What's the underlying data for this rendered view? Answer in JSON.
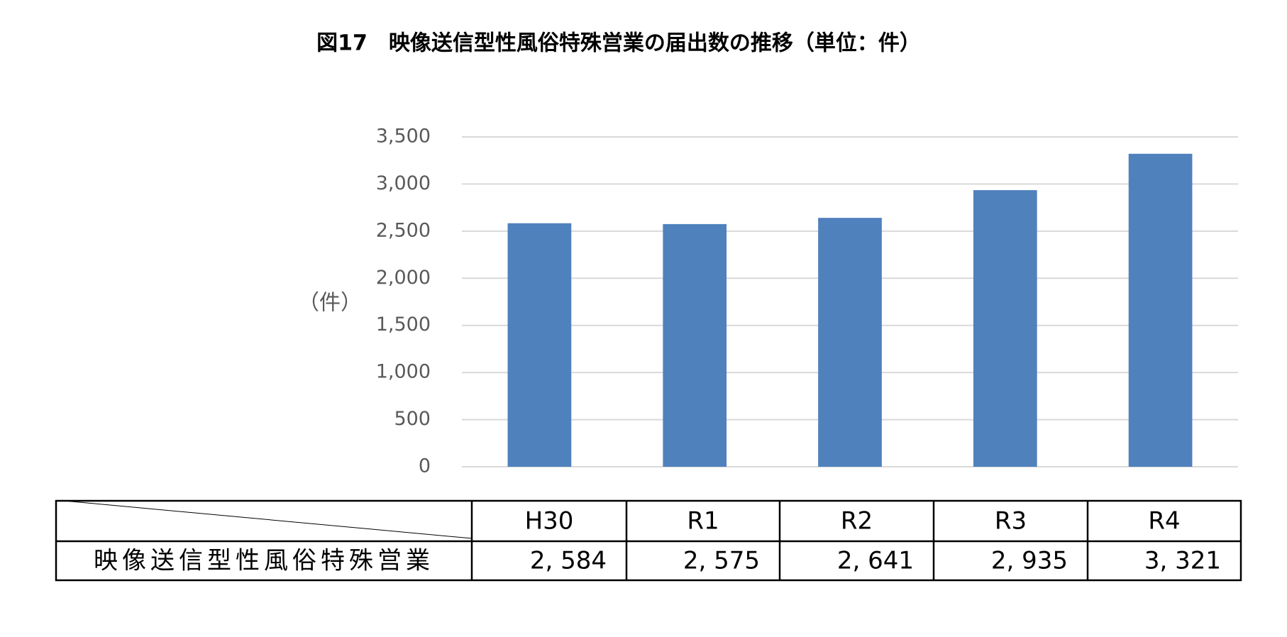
{
  "chart_data": {
    "type": "bar",
    "title": "図17　映像送信型性風俗特殊営業の届出数の推移（単位：件）",
    "y_label": "（件）",
    "categories": [
      "H30",
      "R1",
      "R2",
      "R3",
      "R4"
    ],
    "series": [
      {
        "name": "映像送信型性風俗特殊営業",
        "color": "#4f81bd",
        "values": [
          2584,
          2575,
          2641,
          2935,
          3321
        ],
        "value_labels": [
          "2, 584",
          "2, 575",
          "2, 641",
          "2, 935",
          "3, 321"
        ]
      }
    ],
    "ylim": [
      0,
      3500
    ],
    "yticks": [
      0,
      500,
      {
        "value": 1000,
        "label": "1,000"
      },
      {
        "value": 1500,
        "label": "1,500"
      },
      {
        "value": 2000,
        "label": "2,000"
      },
      {
        "value": 2500,
        "label": "2,500"
      },
      {
        "value": 3000,
        "label": "3,000"
      },
      {
        "value": 3500,
        "label": "3,500"
      }
    ],
    "grid": true
  }
}
